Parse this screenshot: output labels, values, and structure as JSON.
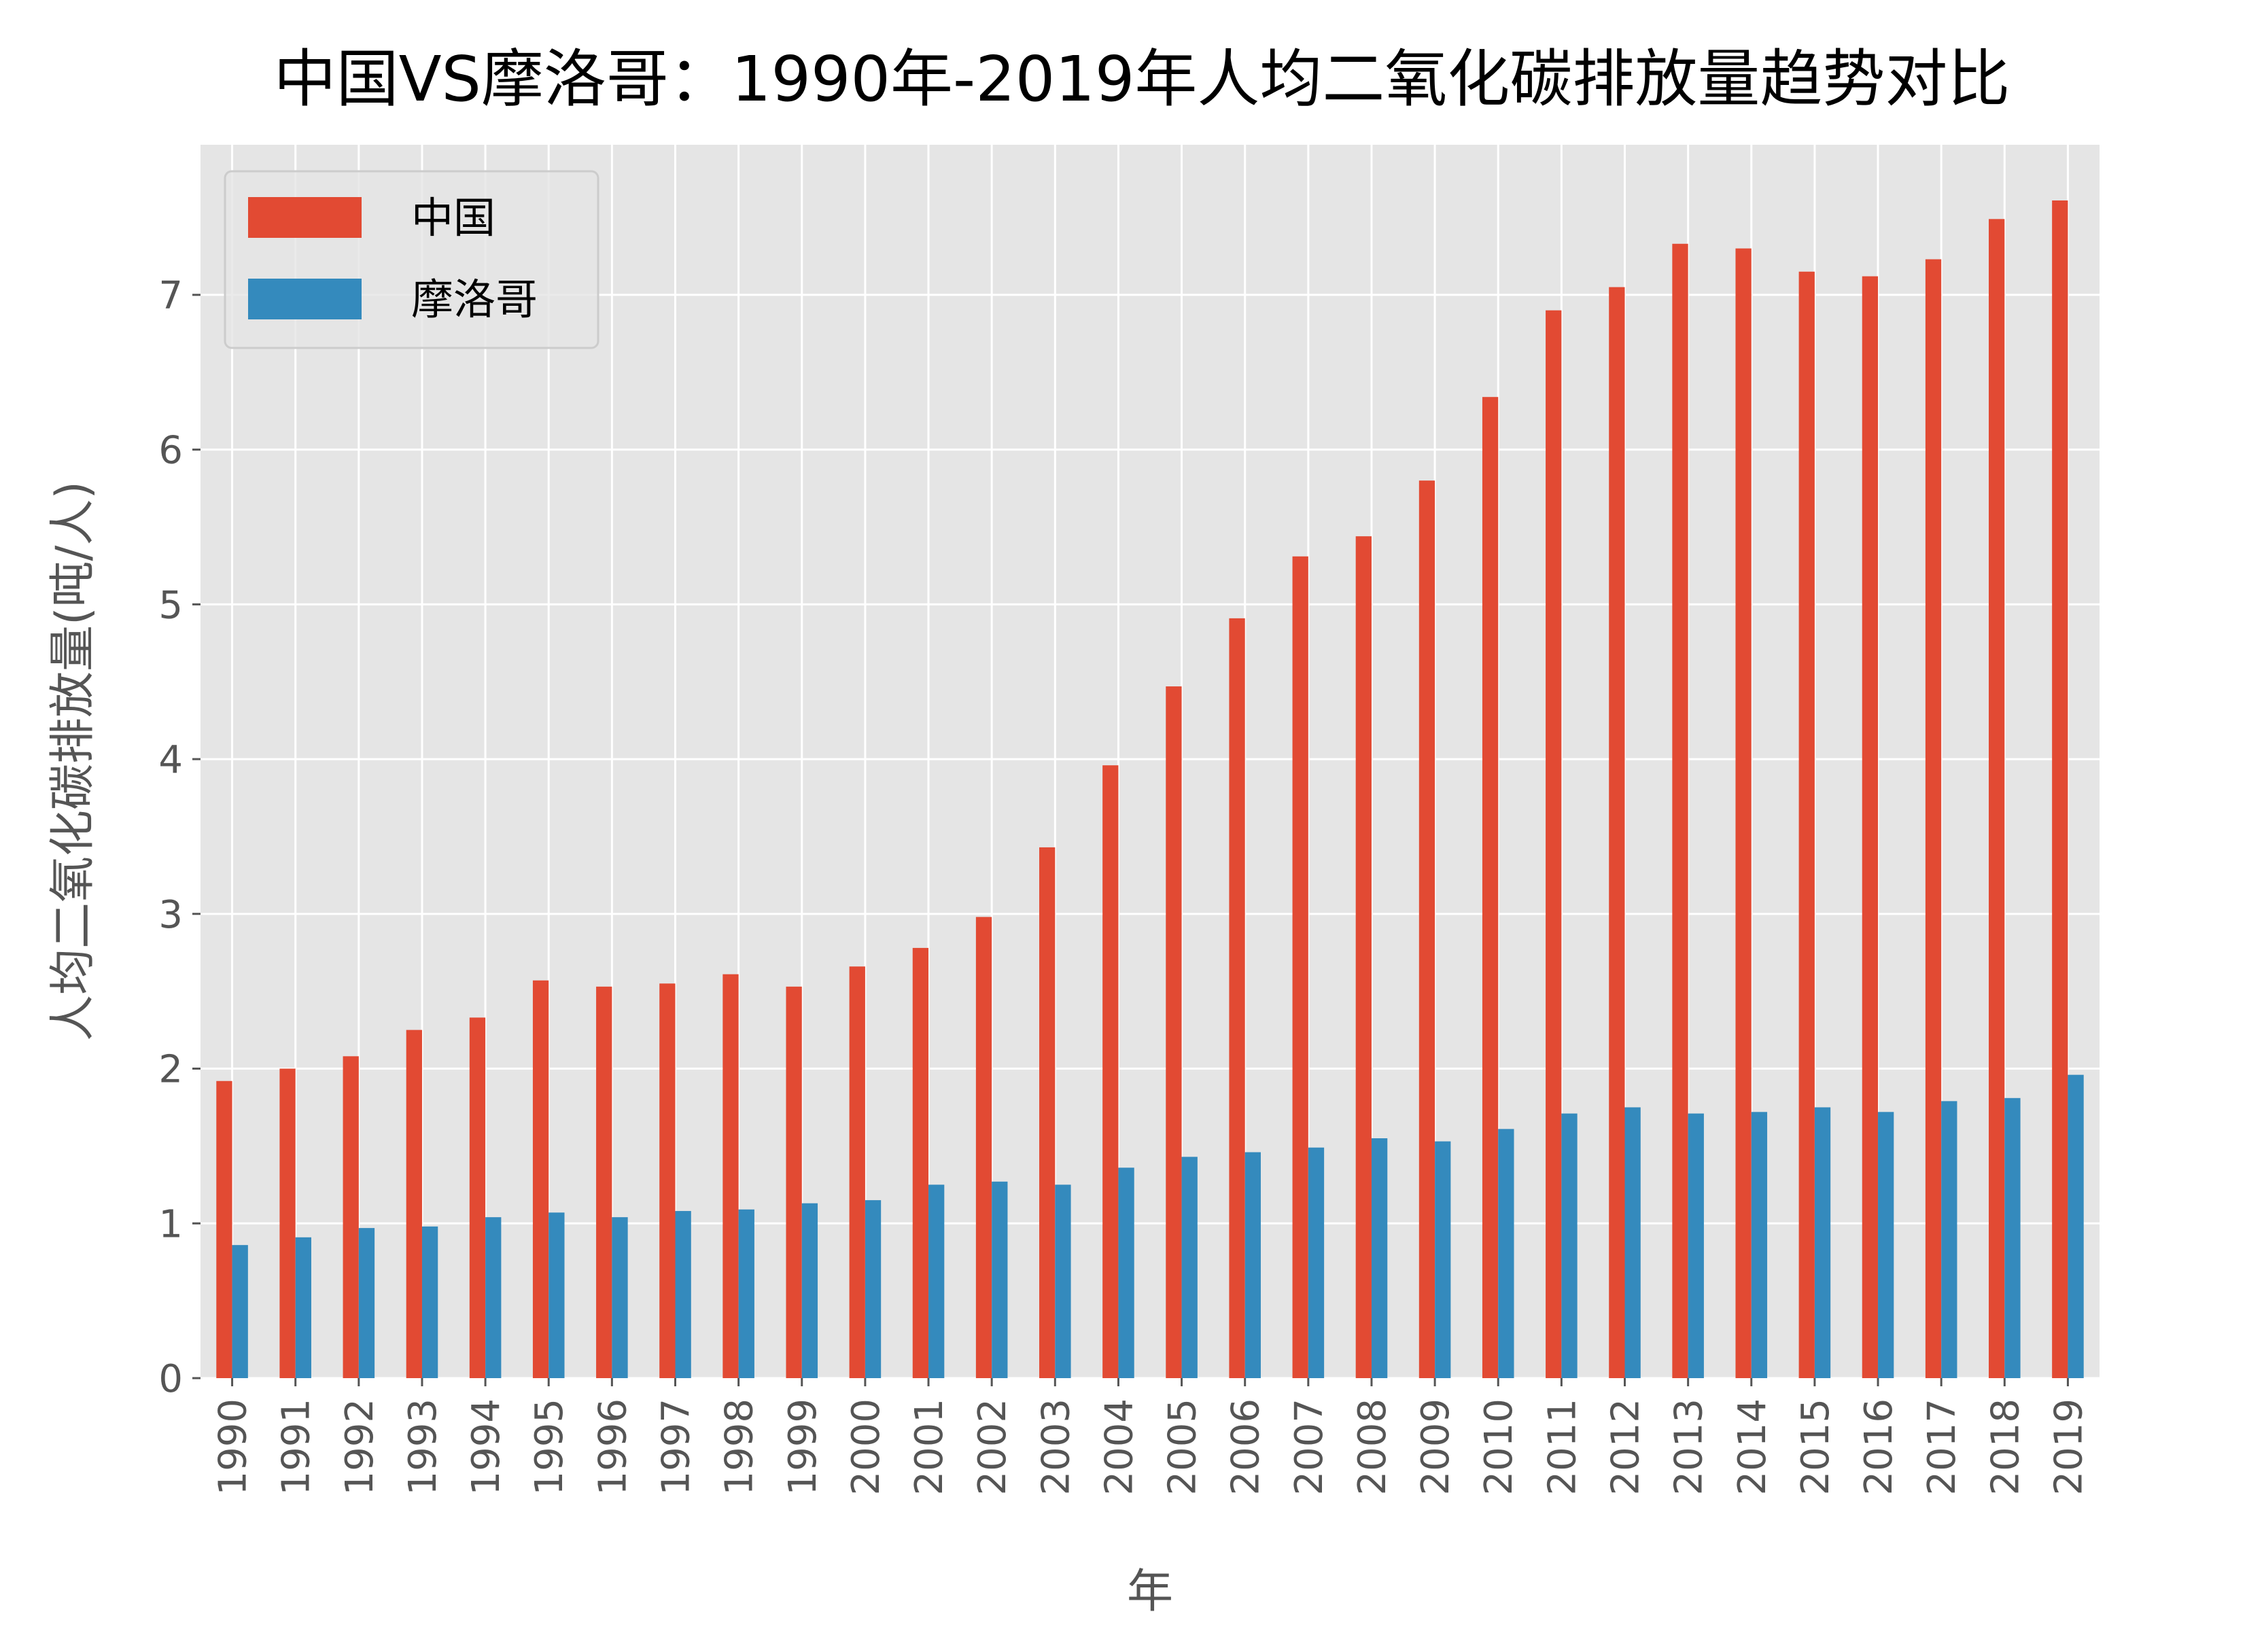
{
  "chart_data": {
    "type": "bar",
    "title": "中国VS摩洛哥：1990年-2019年人均二氧化碳排放量趋势对比",
    "xlabel": "年",
    "ylabel": "人均二氧化碳排放量(吨/人)",
    "ylim": [
      0,
      7.97
    ],
    "yticks": [
      0,
      1,
      2,
      3,
      4,
      5,
      6,
      7
    ],
    "grid": true,
    "legend_position": "top-left",
    "categories": [
      "1990",
      "1991",
      "1992",
      "1993",
      "1994",
      "1995",
      "1996",
      "1997",
      "1998",
      "1999",
      "2000",
      "2001",
      "2002",
      "2003",
      "2004",
      "2005",
      "2006",
      "2007",
      "2008",
      "2009",
      "2010",
      "2011",
      "2012",
      "2013",
      "2014",
      "2015",
      "2016",
      "2017",
      "2018",
      "2019"
    ],
    "series": [
      {
        "name": "中国",
        "color": "#E24A33",
        "values": [
          1.92,
          2.0,
          2.08,
          2.25,
          2.33,
          2.57,
          2.53,
          2.55,
          2.61,
          2.53,
          2.66,
          2.78,
          2.98,
          3.43,
          3.96,
          4.47,
          4.91,
          5.31,
          5.44,
          5.8,
          6.34,
          6.9,
          7.05,
          7.33,
          7.3,
          7.15,
          7.12,
          7.23,
          7.49,
          7.61
        ]
      },
      {
        "name": "摩洛哥",
        "color": "#348ABD",
        "values": [
          0.86,
          0.91,
          0.97,
          0.98,
          1.04,
          1.07,
          1.04,
          1.08,
          1.09,
          1.13,
          1.15,
          1.25,
          1.27,
          1.25,
          1.36,
          1.43,
          1.46,
          1.49,
          1.55,
          1.53,
          1.61,
          1.71,
          1.75,
          1.71,
          1.72,
          1.75,
          1.72,
          1.79,
          1.81,
          1.96
        ]
      }
    ],
    "background_color": "#E5E5E5"
  }
}
